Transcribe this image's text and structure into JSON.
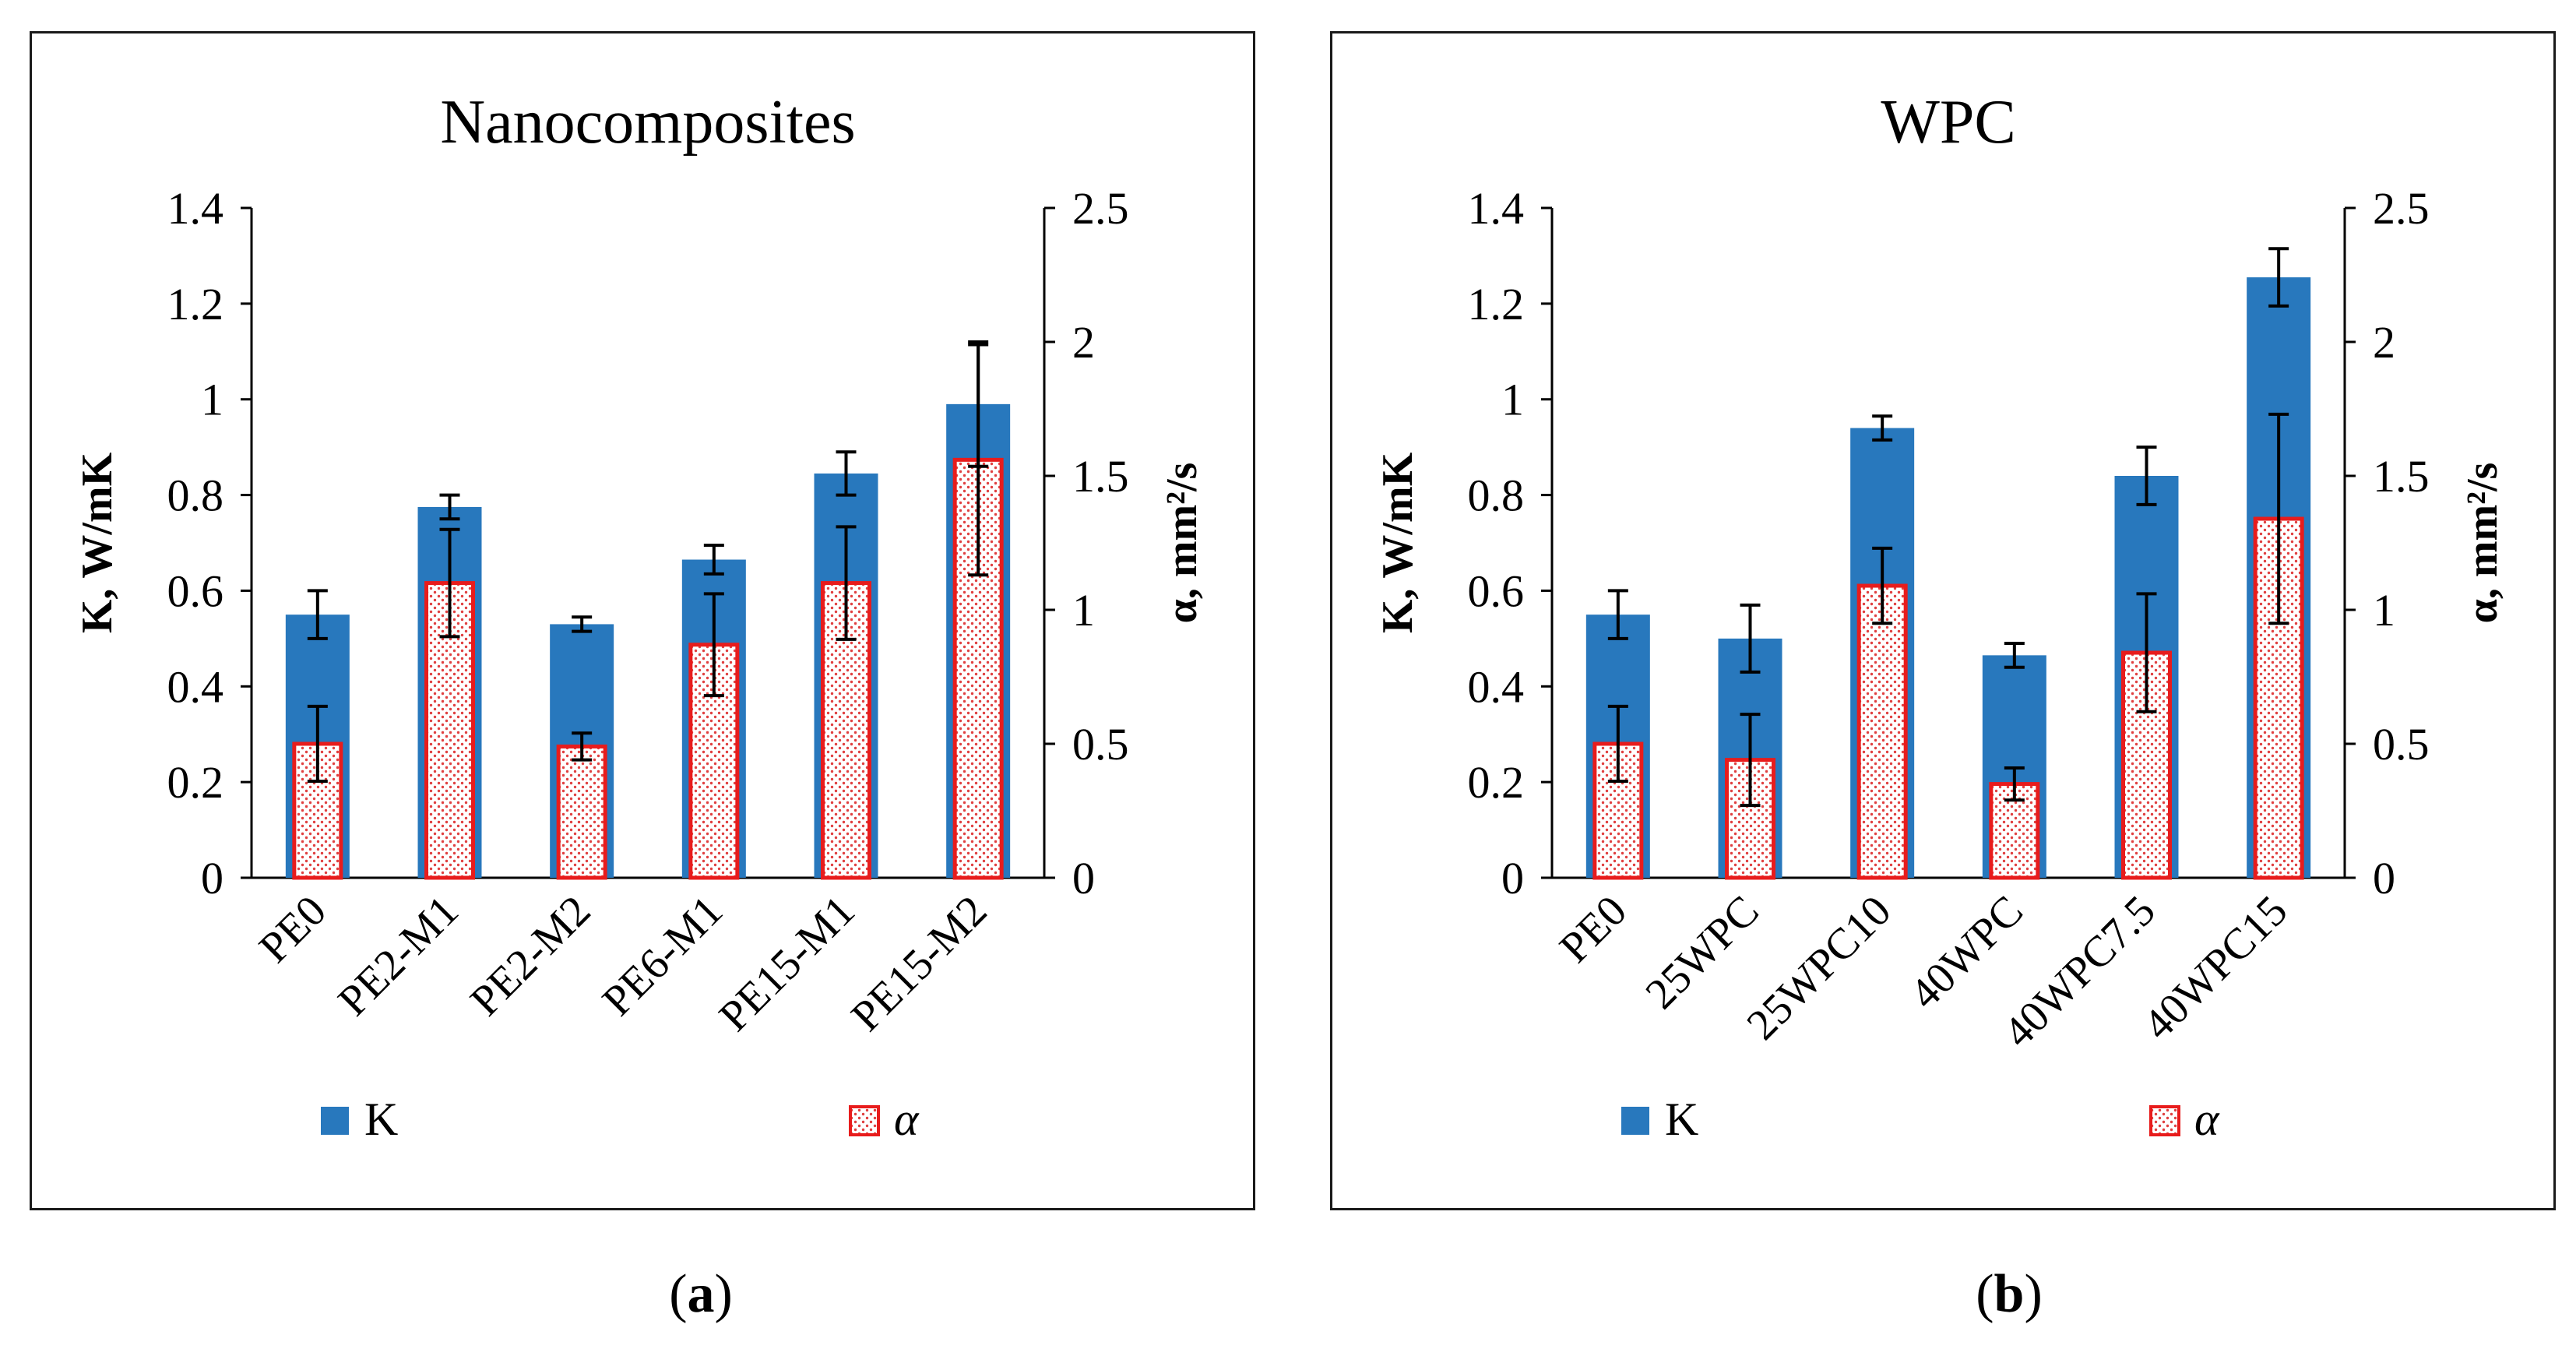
{
  "panel_labels": {
    "a": "a",
    "b": "b"
  },
  "colors": {
    "k_bar": "#2878bd",
    "alpha_stroke": "#e81c1c",
    "alpha_dot": "#e04040",
    "axis": "#000000"
  },
  "chart_data": [
    {
      "type": "bar",
      "title": "Nanocomposites",
      "categories": [
        "PE0",
        "PE2-M1",
        "PE2-M2",
        "PE6-M1",
        "PE15-M1",
        "PE15-M2"
      ],
      "ylabel": "K, W/mK",
      "y2label": "α, mm²/s",
      "ylim": [
        0,
        1.4
      ],
      "y2lim": [
        0,
        2.5
      ],
      "yticks": [
        "0",
        "0.2",
        "0.4",
        "0.6",
        "0.8",
        "1",
        "1.2",
        "1.4"
      ],
      "y2ticks": [
        "0",
        "0.5",
        "1",
        "1.5",
        "2",
        "2.5"
      ],
      "legend_position": "bottom",
      "series": [
        {
          "name": "K",
          "axis": "left",
          "values": [
            0.55,
            0.775,
            0.53,
            0.665,
            0.845,
            0.99
          ],
          "errors": [
            0.05,
            0.025,
            0.015,
            0.03,
            0.045,
            0.13
          ]
        },
        {
          "name": "α",
          "axis": "right",
          "values": [
            0.5,
            1.1,
            0.49,
            0.87,
            1.1,
            1.56
          ],
          "errors": [
            0.14,
            0.2,
            0.05,
            0.19,
            0.21,
            0.43
          ]
        }
      ]
    },
    {
      "type": "bar",
      "title": "WPC",
      "categories": [
        "PE0",
        "25WPC",
        "25WPC10",
        "40WPC",
        "40WPC7.5",
        "40WPC15"
      ],
      "ylabel": "K, W/mK",
      "y2label": "α, mm²/s",
      "ylim": [
        0,
        1.4
      ],
      "y2lim": [
        0,
        2.5
      ],
      "yticks": [
        "0",
        "0.2",
        "0.4",
        "0.6",
        "0.8",
        "1",
        "1.2",
        "1.4"
      ],
      "y2ticks": [
        "0",
        "0.5",
        "1",
        "1.5",
        "2",
        "2.5"
      ],
      "legend_position": "bottom",
      "series": [
        {
          "name": "K",
          "axis": "left",
          "values": [
            0.55,
            0.5,
            0.94,
            0.465,
            0.84,
            1.255
          ],
          "errors": [
            0.05,
            0.07,
            0.025,
            0.025,
            0.06,
            0.06
          ]
        },
        {
          "name": "α",
          "axis": "right",
          "values": [
            0.5,
            0.44,
            1.09,
            0.35,
            0.84,
            1.34
          ],
          "errors": [
            0.14,
            0.17,
            0.14,
            0.06,
            0.22,
            0.39
          ]
        }
      ]
    }
  ]
}
